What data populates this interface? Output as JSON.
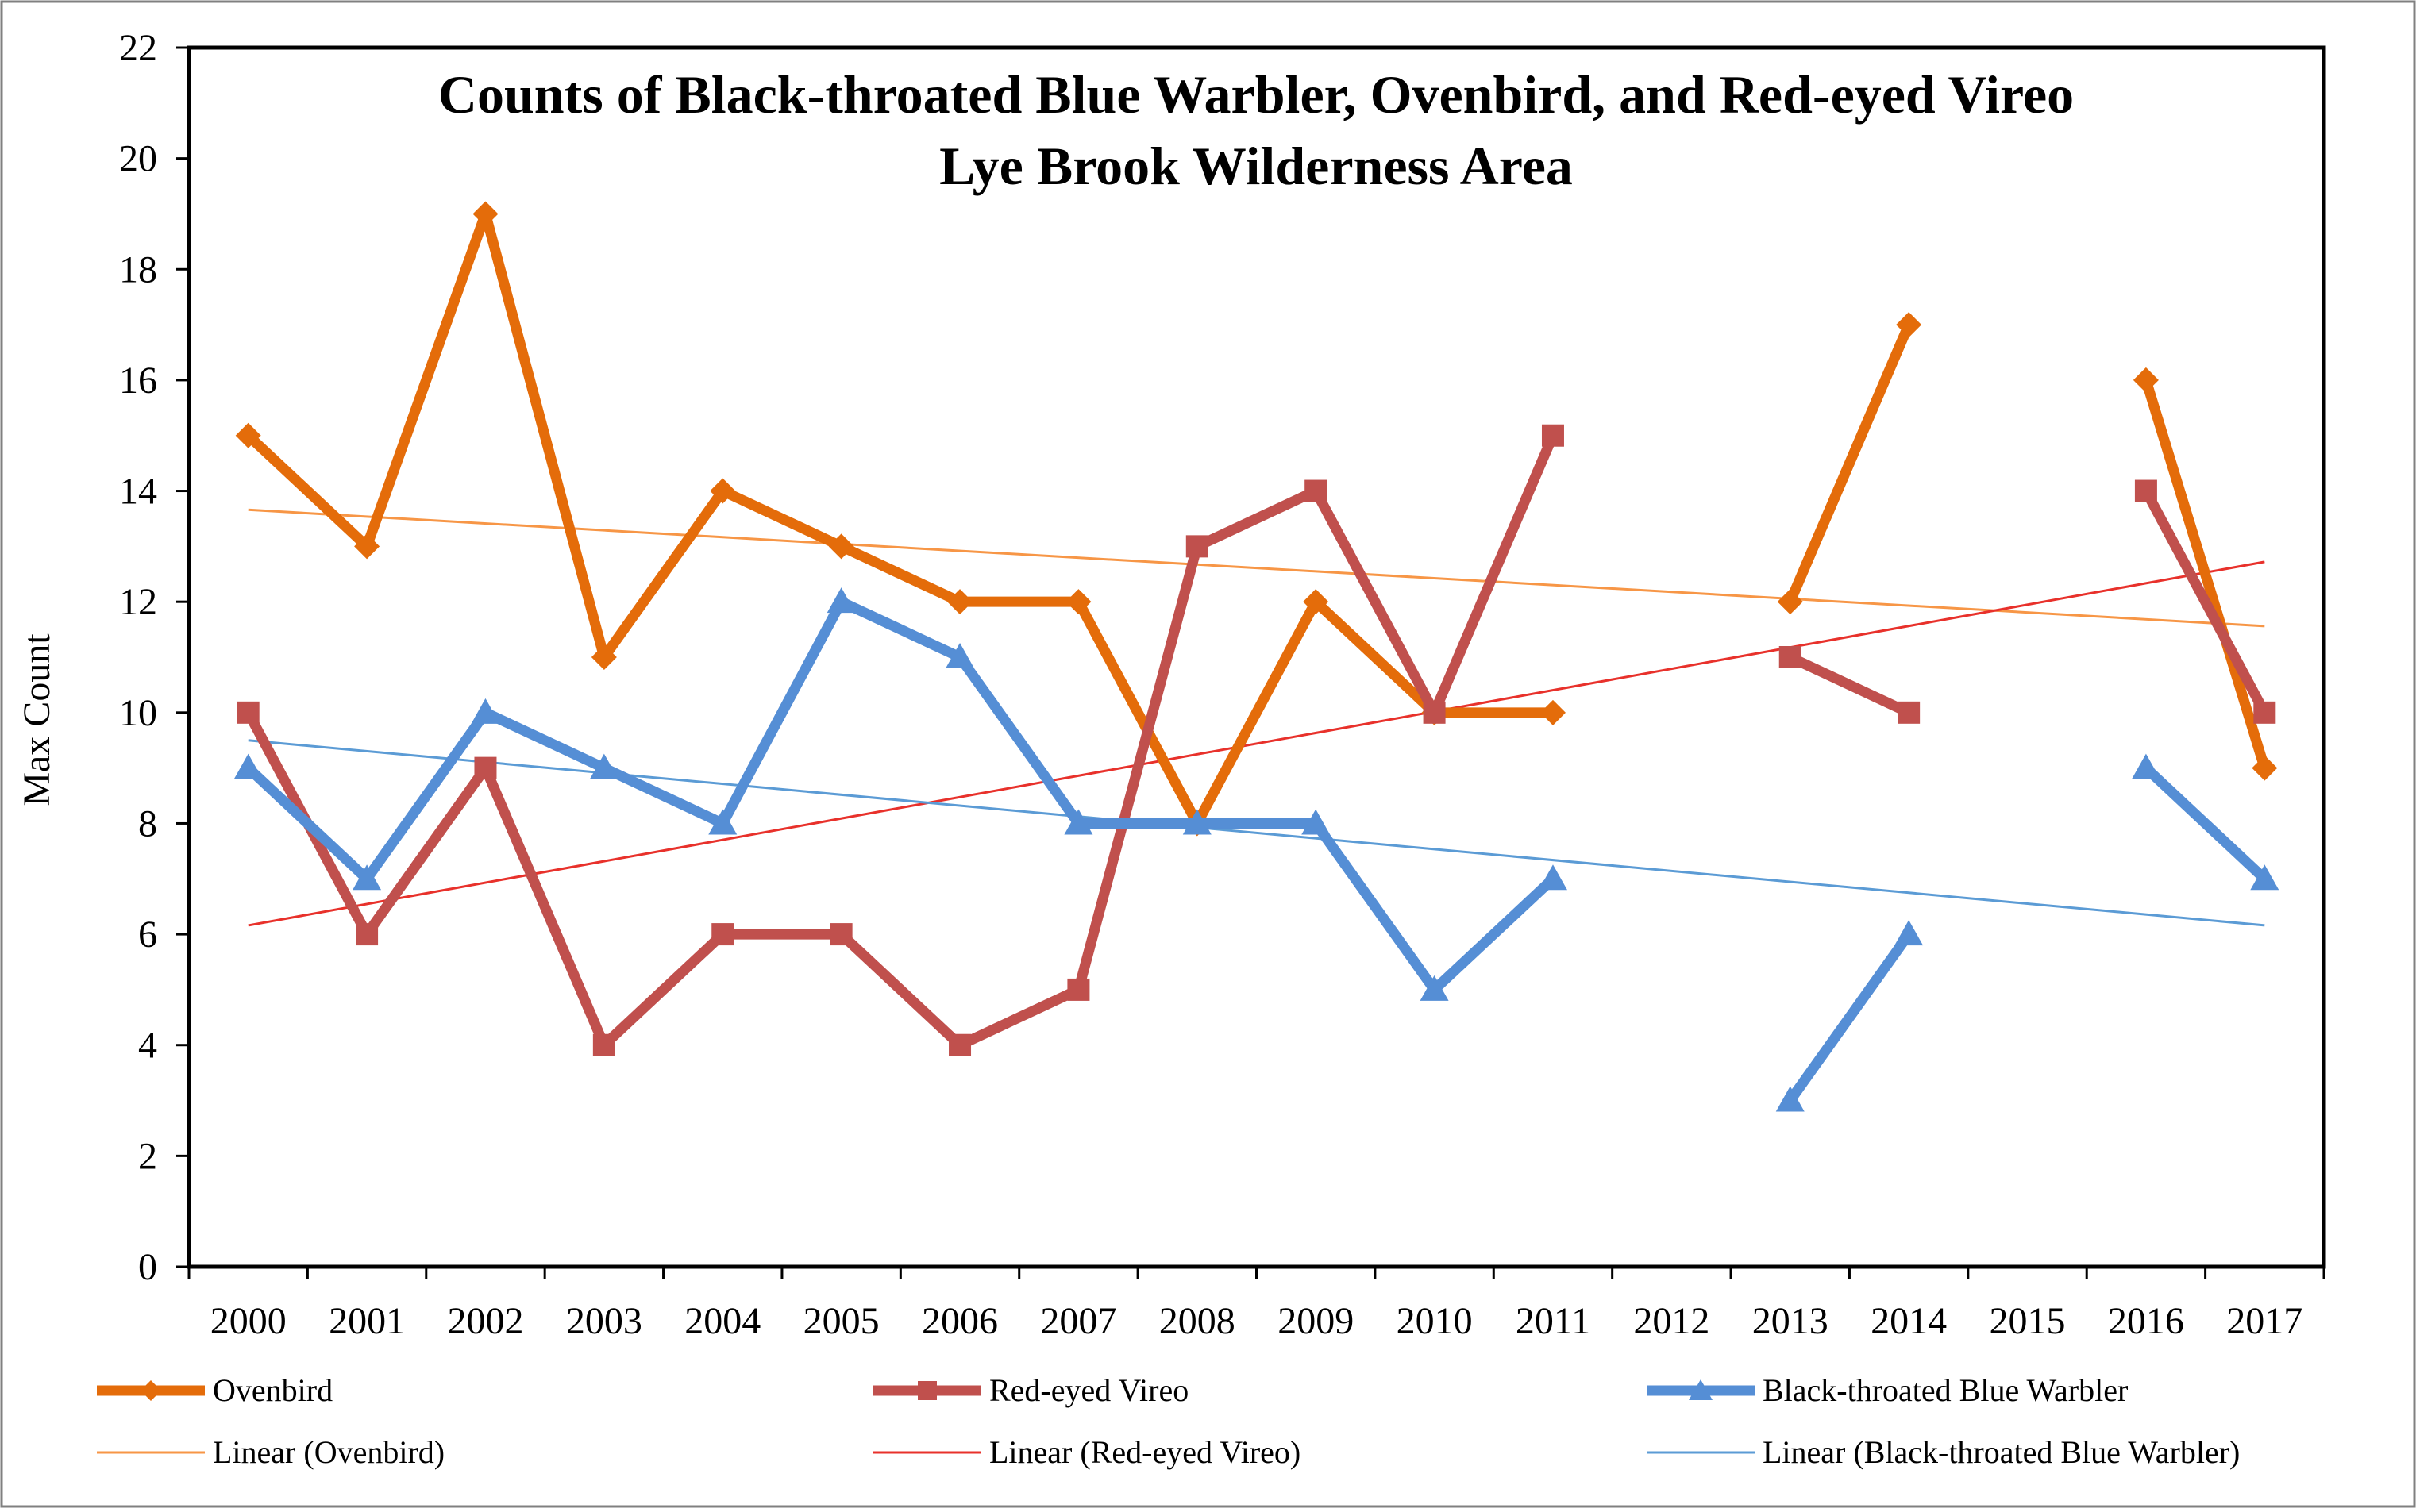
{
  "chart_data": {
    "type": "line",
    "title": "Counts of Black-throated Blue Warbler, Ovenbird, and Red-eyed Vireo",
    "subtitle": "Lye Brook Wilderness  Area",
    "xlabel": "",
    "ylabel": "Max Count",
    "ylim": [
      0,
      22
    ],
    "yticks": [
      0,
      2,
      4,
      6,
      8,
      10,
      12,
      14,
      16,
      18,
      20,
      22
    ],
    "categories": [
      "2000",
      "2001",
      "2002",
      "2003",
      "2004",
      "2005",
      "2006",
      "2007",
      "2008",
      "2009",
      "2010",
      "2011",
      "2012",
      "2013",
      "2014",
      "2015",
      "2016",
      "2017"
    ],
    "grid": false,
    "legend_position": "bottom",
    "series": [
      {
        "name": "Ovenbird",
        "color": "#E46C0A",
        "marker": "diamond",
        "values": [
          15,
          13,
          19,
          11,
          14,
          13,
          12,
          12,
          8,
          12,
          10,
          10,
          null,
          12,
          17,
          null,
          16,
          9
        ]
      },
      {
        "name": "Red-eyed Vireo",
        "color": "#C0504D",
        "marker": "square",
        "values": [
          10,
          6,
          9,
          4,
          6,
          6,
          4,
          5,
          13,
          14,
          10,
          15,
          null,
          11,
          10,
          null,
          14,
          10
        ]
      },
      {
        "name": "Black-throated Blue Warbler",
        "color": "#558ED5",
        "marker": "triangle",
        "values": [
          9,
          7,
          10,
          9,
          8,
          12,
          11,
          8,
          8,
          8,
          5,
          7,
          null,
          3,
          6,
          null,
          9,
          7
        ]
      }
    ],
    "trendlines": [
      {
        "name": "Linear (Ovenbird)",
        "color": "#F79646",
        "start": 13.66,
        "end": 11.56
      },
      {
        "name": "Linear (Red-eyed Vireo)",
        "color": "#E8312B",
        "start": 6.16,
        "end": 12.72
      },
      {
        "name": "Linear (Black-throated Blue Warbler)",
        "color": "#5B9BD5",
        "start": 9.5,
        "end": 6.16
      }
    ]
  }
}
